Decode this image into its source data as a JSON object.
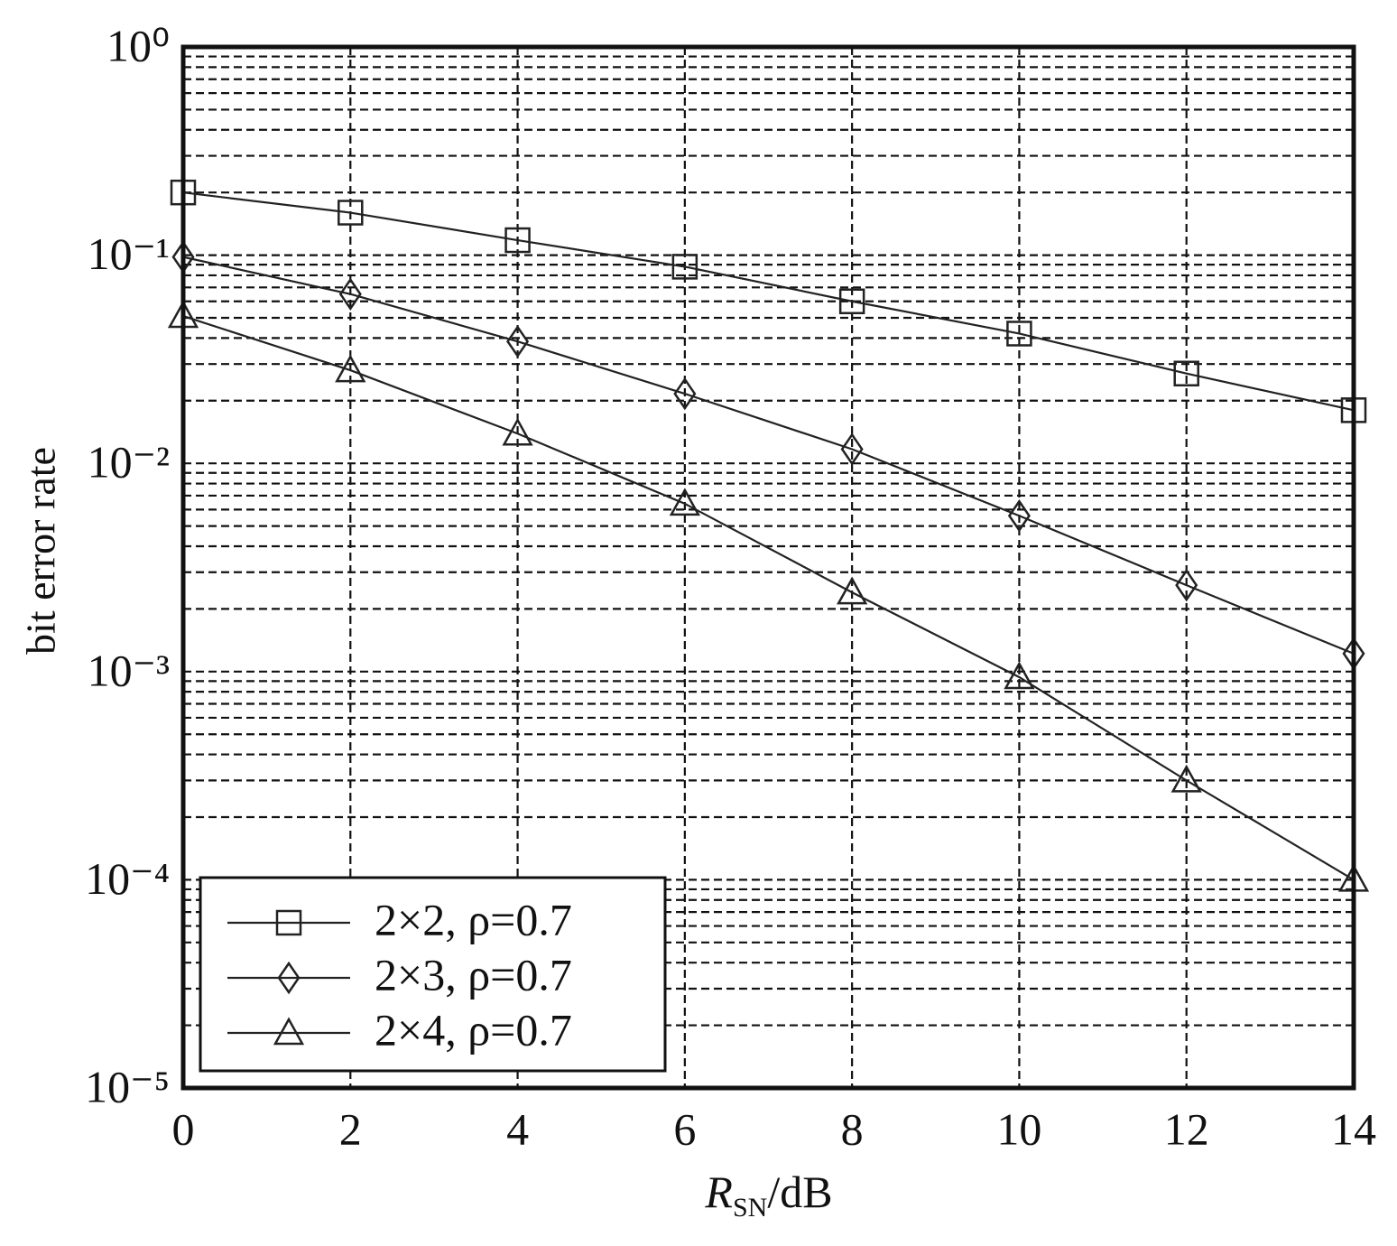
{
  "chart_data": {
    "type": "line",
    "xlabel": {
      "symbol": "R",
      "subscript": "SN",
      "unit": "/dB"
    },
    "ylabel": "bit error rate",
    "x": [
      0,
      2,
      4,
      6,
      8,
      10,
      12,
      14
    ],
    "series": [
      {
        "name": "2×2, ρ=0.7",
        "color": "#222222",
        "marker": "square",
        "values": [
          0.2,
          0.16,
          0.118,
          0.088,
          0.06,
          0.042,
          0.027,
          0.018
        ]
      },
      {
        "name": "2×3, ρ=0.7",
        "color": "#222222",
        "marker": "diamond",
        "values": [
          0.098,
          0.065,
          0.0385,
          0.0216,
          0.0117,
          0.0056,
          0.0026,
          0.00122
        ]
      },
      {
        "name": "2×4, ρ=0.7",
        "color": "#222222",
        "marker": "triangle",
        "values": [
          0.051,
          0.028,
          0.0139,
          0.0064,
          0.0024,
          0.00094,
          0.0003,
          0.0001
        ]
      }
    ],
    "xlim": [
      0,
      14
    ],
    "xticks": [
      0,
      2,
      4,
      6,
      8,
      10,
      12,
      14
    ],
    "ylim": [
      1e-05,
      1
    ],
    "ylog": true,
    "yticks": [
      {
        "value": 1,
        "label": "10⁰"
      },
      {
        "value": 0.1,
        "label": "10⁻¹"
      },
      {
        "value": 0.01,
        "label": "10⁻²"
      },
      {
        "value": 0.001,
        "label": "10⁻³"
      },
      {
        "value": 0.0001,
        "label": "10⁻⁴"
      },
      {
        "value": 1e-05,
        "label": "10⁻⁵"
      }
    ],
    "yminorticks": [
      2e-05,
      3e-05,
      4e-05,
      5e-05,
      6e-05,
      7e-05,
      8e-05,
      9e-05,
      0.0002,
      0.0003,
      0.0004,
      0.0005,
      0.0006,
      0.0007,
      0.0008,
      0.0009,
      0.002,
      0.003,
      0.004,
      0.005,
      0.006,
      0.007,
      0.008,
      0.009,
      0.02,
      0.03,
      0.04,
      0.05,
      0.06,
      0.07,
      0.08,
      0.09,
      0.2,
      0.3,
      0.4,
      0.5,
      0.6,
      0.7,
      0.8,
      0.9
    ],
    "grid": true,
    "legend": "lower left"
  }
}
